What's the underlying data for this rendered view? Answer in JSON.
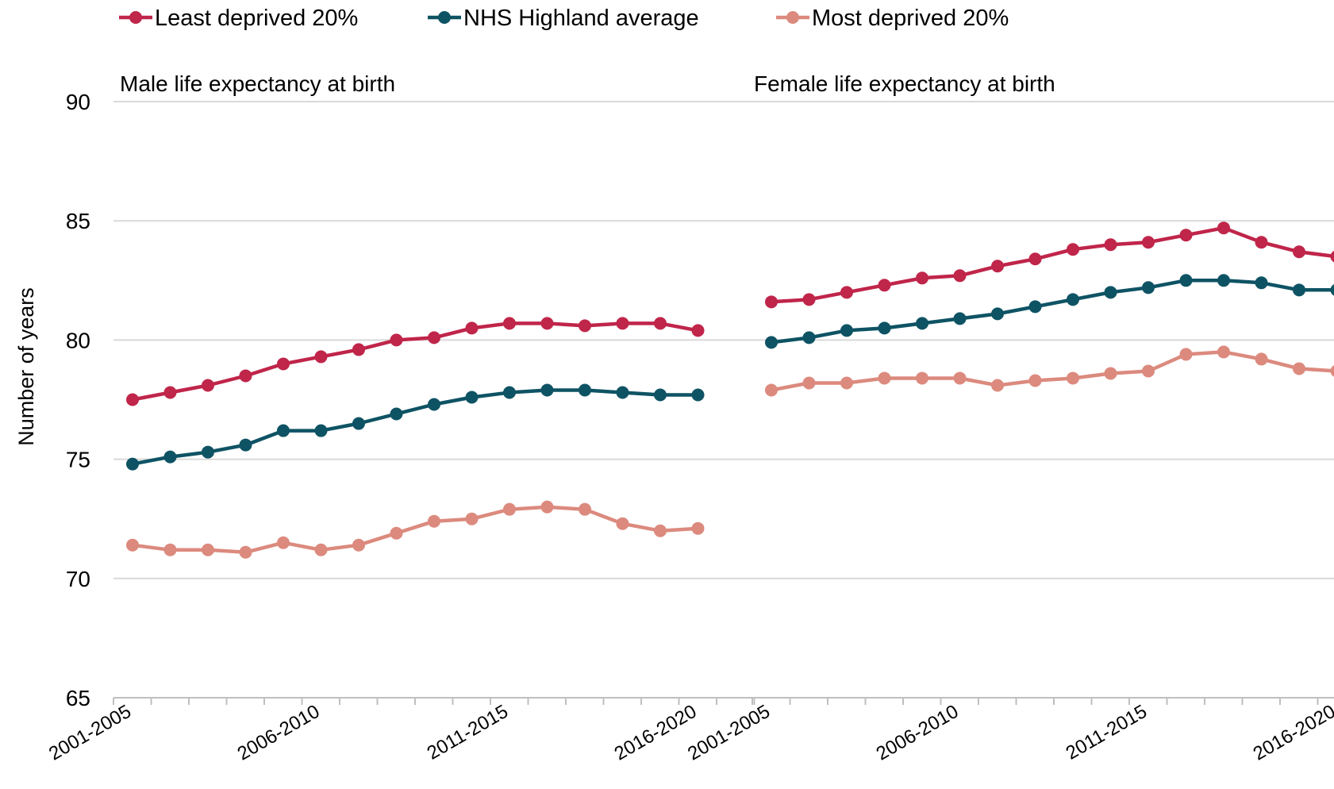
{
  "chart_data": {
    "type": "line",
    "ylabel": "Number of years",
    "ylim": [
      65,
      90
    ],
    "yticks": [
      65,
      70,
      75,
      80,
      85,
      90
    ],
    "grid": true,
    "legend_position": "top-left",
    "x_tick_labels": [
      "2001-2005",
      "2006-2010",
      "2011-2015",
      "2016-2020"
    ],
    "x": [
      "2001-2005",
      "2002-2006",
      "2003-2007",
      "2004-2008",
      "2005-2009",
      "2006-2010",
      "2007-2011",
      "2008-2012",
      "2009-2013",
      "2010-2014",
      "2011-2015",
      "2012-2016",
      "2013-2017",
      "2014-2018",
      "2015-2019",
      "2016-2020"
    ],
    "legend": [
      {
        "name": "Least deprived 20%",
        "color": "#C0254A"
      },
      {
        "name": "NHS Highland average",
        "color": "#0E5364"
      },
      {
        "name": "Most deprived 20%",
        "color": "#DC8A7E"
      }
    ],
    "panels": [
      {
        "title": "Male life expectancy at birth",
        "series": [
          {
            "name": "Least deprived 20%",
            "color": "#C0254A",
            "values": [
              77.5,
              77.8,
              78.1,
              78.5,
              79.0,
              79.3,
              79.6,
              80.0,
              80.1,
              80.5,
              80.7,
              80.7,
              80.6,
              80.7,
              80.7,
              80.4
            ]
          },
          {
            "name": "NHS Highland average",
            "color": "#0E5364",
            "values": [
              74.8,
              75.1,
              75.3,
              75.6,
              76.2,
              76.2,
              76.5,
              76.9,
              77.3,
              77.6,
              77.8,
              77.9,
              77.9,
              77.8,
              77.7,
              77.7
            ]
          },
          {
            "name": "Most deprived 20%",
            "color": "#DC8A7E",
            "values": [
              71.4,
              71.2,
              71.2,
              71.1,
              71.5,
              71.2,
              71.4,
              71.9,
              72.4,
              72.5,
              72.9,
              73.0,
              72.9,
              72.3,
              72.0,
              72.1
            ]
          }
        ]
      },
      {
        "title": "Female life expectancy at birth",
        "series": [
          {
            "name": "Least deprived 20%",
            "color": "#C0254A",
            "values": [
              81.6,
              81.7,
              82.0,
              82.3,
              82.6,
              82.7,
              83.1,
              83.4,
              83.8,
              84.0,
              84.1,
              84.4,
              84.7,
              84.1,
              83.7,
              83.5
            ]
          },
          {
            "name": "NHS Highland average",
            "color": "#0E5364",
            "values": [
              79.9,
              80.1,
              80.4,
              80.5,
              80.7,
              80.9,
              81.1,
              81.4,
              81.7,
              82.0,
              82.2,
              82.5,
              82.5,
              82.4,
              82.1,
              82.1
            ]
          },
          {
            "name": "Most deprived 20%",
            "color": "#DC8A7E",
            "values": [
              77.9,
              78.2,
              78.2,
              78.4,
              78.4,
              78.4,
              78.1,
              78.3,
              78.4,
              78.6,
              78.7,
              79.4,
              79.5,
              79.2,
              78.8,
              78.7
            ]
          }
        ]
      }
    ]
  }
}
